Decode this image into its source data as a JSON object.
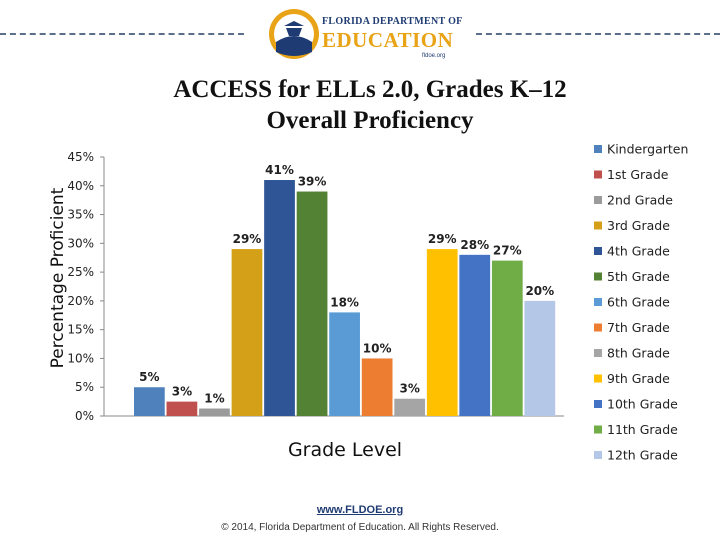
{
  "header": {
    "logo_top": "FLORIDA DEPARTMENT OF",
    "logo_main": "EDUCATION",
    "logo_sub": "fldoe.org"
  },
  "chart_data": {
    "type": "bar",
    "title": "ACCESS for ELLs 2.0, Grades K–12",
    "subtitle": "Overall Proficiency",
    "xlabel": "Grade Level",
    "ylabel": "Percentage Proficient",
    "ylim": [
      0,
      45
    ],
    "yticks": [
      "0%",
      "5%",
      "10%",
      "15%",
      "20%",
      "25%",
      "30%",
      "35%",
      "40%",
      "45%"
    ],
    "grid": false,
    "legend_position": "right",
    "series": [
      {
        "name": "Kindergarten",
        "value": 5,
        "label": "5%",
        "color": "#4f81bd"
      },
      {
        "name": "1st Grade",
        "value": 2.5,
        "label": "3%",
        "color": "#c0504d"
      },
      {
        "name": "2nd Grade",
        "value": 1.3,
        "label": "1%",
        "color": "#9b9b9b"
      },
      {
        "name": "3rd Grade",
        "value": 29,
        "label": "29%",
        "color": "#d4a017"
      },
      {
        "name": "4th Grade",
        "value": 41,
        "label": "41%",
        "color": "#2f5597"
      },
      {
        "name": "5th Grade",
        "value": 39,
        "label": "39%",
        "color": "#548235"
      },
      {
        "name": "6th Grade",
        "value": 18,
        "label": "18%",
        "color": "#5b9bd5"
      },
      {
        "name": "7th Grade",
        "value": 10,
        "label": "10%",
        "color": "#ed7d31"
      },
      {
        "name": "8th Grade",
        "value": 3,
        "label": "3%",
        "color": "#a5a5a5"
      },
      {
        "name": "9th Grade",
        "value": 29,
        "label": "29%",
        "color": "#ffc000"
      },
      {
        "name": "10th Grade",
        "value": 28,
        "label": "28%",
        "color": "#4472c4"
      },
      {
        "name": "11th Grade",
        "value": 27,
        "label": "27%",
        "color": "#70ad47"
      },
      {
        "name": "12th Grade",
        "value": 20,
        "label": "20%",
        "color": "#b4c7e7"
      }
    ]
  },
  "footer": {
    "url": "www.FLDOE.org",
    "copyright": "© 2014, Florida Department of Education. All Rights Reserved."
  }
}
